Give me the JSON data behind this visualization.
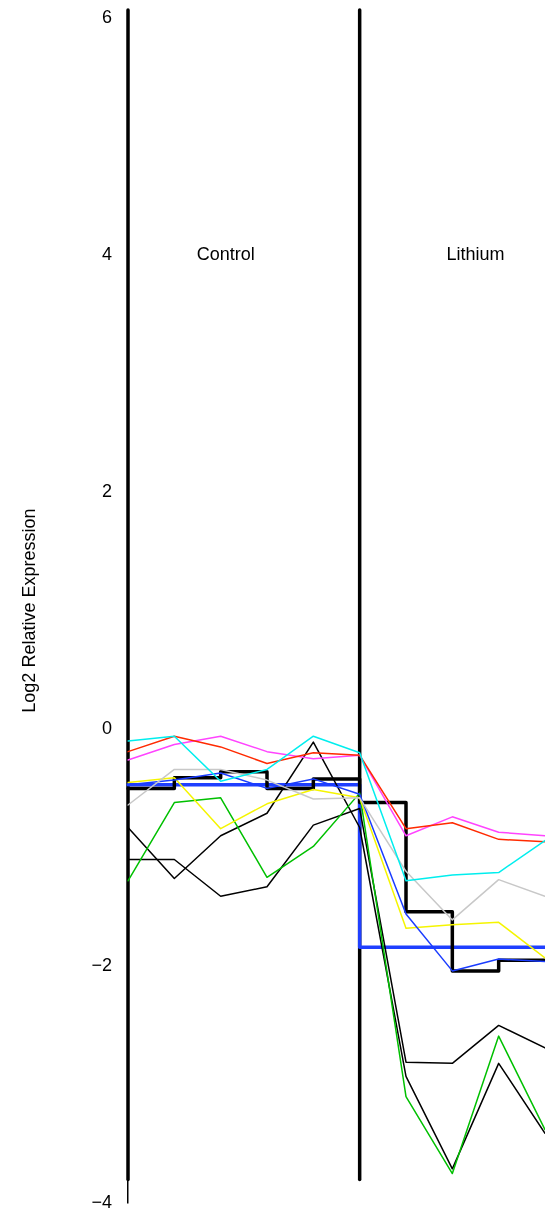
{
  "chart_data": {
    "type": "line",
    "ylabel": "Log2 Relative Expression",
    "categories": [
      null,
      null,
      null,
      null,
      null,
      null,
      null,
      null,
      null,
      null
    ],
    "ylim": [
      -4,
      6
    ],
    "yticks": [
      {
        "value": -4,
        "label": "−4"
      },
      {
        "value": -2,
        "label": "−2"
      },
      0,
      2,
      4,
      6
    ],
    "tick_labels": "y",
    "grid": false,
    "legend": false,
    "marker": "none",
    "line_style": "solid",
    "annotations": [
      "Control",
      "Lithium"
    ],
    "series": [
      {
        "color": "#00eeee",
        "values": [
          -0.1,
          -0.06,
          -0.44,
          -0.34,
          -0.06,
          -0.2,
          -1.28,
          -1.23,
          -1.21,
          -0.94
        ]
      },
      {
        "color": "#ff2a00",
        "values": [
          -0.19,
          -0.06,
          -0.15,
          -0.29,
          -0.2,
          -0.22,
          -0.84,
          -0.79,
          -0.93,
          -0.95
        ]
      },
      {
        "color": "#ff44ff",
        "values": [
          -0.26,
          -0.13,
          -0.06,
          -0.19,
          -0.25,
          -0.22,
          -0.9,
          -0.74,
          -0.87,
          -0.9
        ]
      },
      {
        "color": "#c8c8c8",
        "values": [
          -0.64,
          -0.34,
          -0.34,
          -0.43,
          -0.59,
          -0.58,
          -1.2,
          -1.61,
          -1.27,
          -1.41
        ]
      },
      {
        "color": "#1a3cff",
        "values": [
          -0.47,
          -0.43,
          -0.37,
          -0.5,
          -0.42,
          -0.55,
          -1.56,
          -2.04,
          -1.94,
          -1.96
        ]
      },
      {
        "color": "#f5f500",
        "values": [
          -0.45,
          -0.41,
          -0.84,
          -0.63,
          -0.51,
          -0.58,
          -1.68,
          -1.65,
          -1.63,
          -1.93
        ]
      },
      {
        "color": "#00c000",
        "values": [
          -1.28,
          -0.62,
          -0.58,
          -1.25,
          -0.99,
          -0.54,
          -3.1,
          -3.75,
          -2.59,
          -3.38
        ]
      },
      {
        "color": "#000000",
        "values": [
          -0.83,
          -1.26,
          -0.9,
          -0.71,
          -0.11,
          -0.83,
          -2.93,
          -3.71,
          -2.82,
          -3.41
        ]
      },
      {
        "color": "#000000",
        "values": [
          -1.1,
          -1.1,
          -1.41,
          -1.33,
          -0.81,
          -0.67,
          -2.81,
          -2.82,
          -2.5,
          -2.69
        ]
      },
      {
        "type": "step",
        "color": "#000000",
        "values": [
          -0.5,
          -0.41,
          -0.36,
          -0.5,
          -0.42,
          -0.62,
          -1.54,
          -2.04,
          -1.95,
          -1.95
        ]
      },
      {
        "type": "step",
        "color": "#1f3fff",
        "values": [
          -0.47,
          -0.47,
          -0.47,
          -0.47,
          -0.47,
          -1.84,
          -1.84,
          -1.84,
          -1.84,
          -1.84
        ]
      }
    ]
  }
}
